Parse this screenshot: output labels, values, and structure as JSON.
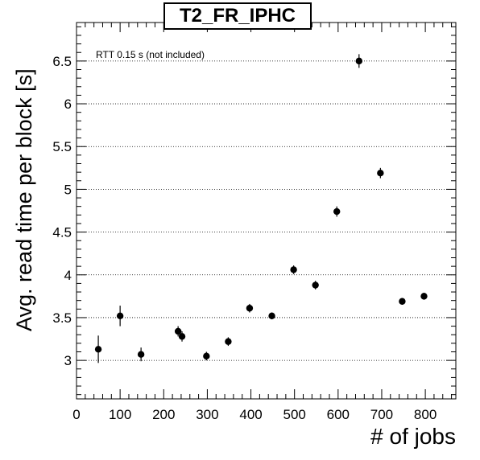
{
  "chart_data": {
    "type": "scatter",
    "title": "T2_FR_IPHC",
    "xlabel": "# of jobs",
    "ylabel": "Avg. read time per block [s]",
    "annotation": "RTT 0.15 s (not included)",
    "xlim": [
      0,
      870
    ],
    "ylim": [
      2.55,
      6.95
    ],
    "xticks": [
      0,
      100,
      200,
      300,
      400,
      500,
      600,
      700,
      800
    ],
    "yticks": [
      3,
      3.5,
      4,
      4.5,
      5,
      5.5,
      6,
      6.5
    ],
    "grid": "horizontal-dotted",
    "points": [
      {
        "x": 50,
        "y": 3.13,
        "err": 0.16
      },
      {
        "x": 100,
        "y": 3.52,
        "err": 0.12
      },
      {
        "x": 148,
        "y": 3.07,
        "err": 0.08
      },
      {
        "x": 233,
        "y": 3.34,
        "err": 0.06
      },
      {
        "x": 242,
        "y": 3.28,
        "err": 0.06
      },
      {
        "x": 298,
        "y": 3.05,
        "err": 0.05
      },
      {
        "x": 348,
        "y": 3.22,
        "err": 0.05
      },
      {
        "x": 397,
        "y": 3.61,
        "err": 0.05
      },
      {
        "x": 448,
        "y": 3.52,
        "err": 0.04
      },
      {
        "x": 498,
        "y": 4.06,
        "err": 0.05
      },
      {
        "x": 548,
        "y": 3.88,
        "err": 0.05
      },
      {
        "x": 597,
        "y": 4.74,
        "err": 0.06
      },
      {
        "x": 648,
        "y": 6.5,
        "err": 0.08
      },
      {
        "x": 697,
        "y": 5.19,
        "err": 0.06
      },
      {
        "x": 747,
        "y": 3.69,
        "err": 0.04
      },
      {
        "x": 797,
        "y": 3.75,
        "err": 0.04
      }
    ],
    "marker_color": "#000000"
  }
}
